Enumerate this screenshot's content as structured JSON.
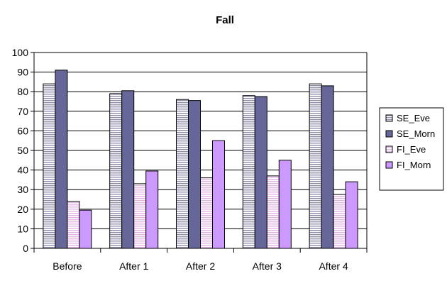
{
  "chart_data": {
    "type": "bar",
    "title": "Fall",
    "xlabel": "",
    "ylabel": "",
    "ylim": [
      0,
      100
    ],
    "yticks": [
      0,
      10,
      20,
      30,
      40,
      50,
      60,
      70,
      80,
      90,
      100
    ],
    "categories": [
      "Before",
      "After 1",
      "After 2",
      "After 3",
      "After 4"
    ],
    "grid": true,
    "legend_position": "right",
    "series": [
      {
        "name": "SE_Eve",
        "values": [
          84,
          79,
          76,
          78,
          84
        ],
        "color": "#d9d9e6",
        "pattern": "horizontal-stripes"
      },
      {
        "name": "SE_Morn",
        "values": [
          91,
          80.5,
          75.5,
          77.5,
          83
        ],
        "color": "#666699",
        "pattern": "solid"
      },
      {
        "name": "FI_Eve",
        "values": [
          24,
          33,
          36,
          37,
          27.5
        ],
        "color": "#f2d9f2",
        "pattern": "horizontal-stripes"
      },
      {
        "name": "FI_Morn",
        "values": [
          19.5,
          39.5,
          55,
          45,
          34
        ],
        "color": "#cc99ff",
        "pattern": "solid"
      }
    ]
  }
}
